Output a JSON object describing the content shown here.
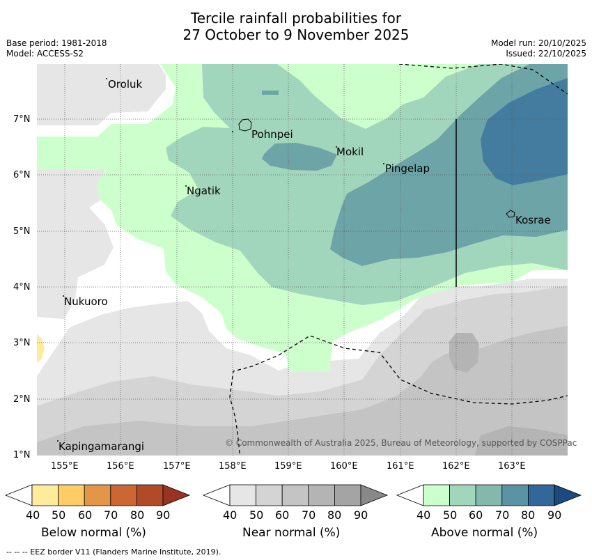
{
  "header": {
    "title_line1": "Tercile rainfall probabilities for",
    "title_line2": "27 October to 9 November 2025",
    "base_period": "Base period: 1981-2018",
    "model": "Model: ACCESS-S2",
    "model_run": "Model run: 20/10/2025",
    "issued": "Issued: 22/10/2025"
  },
  "map": {
    "lon_ticks": [
      "155°E",
      "156°E",
      "157°E",
      "158°E",
      "159°E",
      "160°E",
      "161°E",
      "162°E",
      "163°E"
    ],
    "lat_ticks": [
      "7°N",
      "6°N",
      "5°N",
      "4°N",
      "3°N",
      "2°N",
      "1°N"
    ],
    "places": {
      "oroluk": "Oroluk",
      "pohnpei": "Pohnpei",
      "mokil": "Mokil",
      "pingelap": "Pingelap",
      "ngatik": "Ngatik",
      "kosrae": "Kosrae",
      "nukuoro": "Nukuoro",
      "kapingamarangi": "Kapingamarangi"
    },
    "copyright": "© Commonwealth of Australia 2025, Bureau of Meteorology, supported by COSPPac"
  },
  "legend": {
    "ticks": [
      "40",
      "50",
      "60",
      "70",
      "80",
      "90"
    ],
    "below": {
      "label": "Below normal (%)",
      "colors": [
        "#ffffff",
        "#ffeb9c",
        "#ffcc66",
        "#e39647",
        "#cc6633",
        "#b04a28",
        "#993322"
      ]
    },
    "near": {
      "label": "Near normal (%)",
      "colors": [
        "#ffffff",
        "#e6e6e6",
        "#d4d4d4",
        "#c4c4c4",
        "#b4b4b4",
        "#a4a4a4",
        "#888888"
      ]
    },
    "above": {
      "label": "Above normal (%)",
      "colors": [
        "#ffffff",
        "#ccffcc",
        "#a2d6bc",
        "#84b8ad",
        "#5a93a3",
        "#336699",
        "#1a4a80"
      ]
    }
  },
  "footer": {
    "eez_note": "--  --  -- EEZ border V11 (Flanders Marine Institute, 2019)."
  }
}
